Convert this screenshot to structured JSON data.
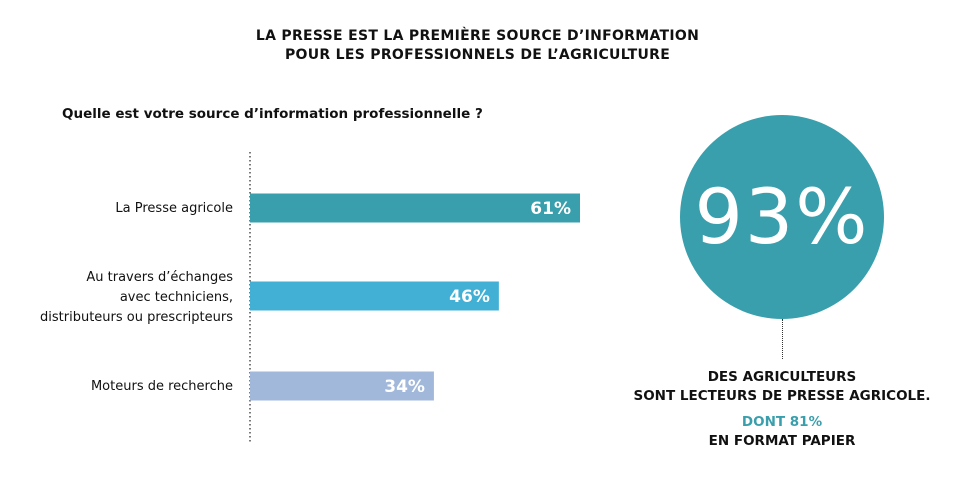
{
  "header": {
    "title_line1": "LA PRESSE EST LA PREMIÈRE SOURCE D’INFORMATION",
    "title_line2": "POUR LES PROFESSIONNELS DE L’AGRICULTURE"
  },
  "question": "Quelle est votre source d’information professionnelle ?",
  "chart_data": {
    "type": "bar",
    "orientation": "horizontal",
    "categories": [
      "La Presse agricole",
      "Au travers d’échanges\navec techniciens,\ndistributeurs ou prescripteurs",
      "Moteurs de recherche"
    ],
    "values": [
      61,
      46,
      34
    ],
    "value_labels": [
      "61%",
      "46%",
      "34%"
    ],
    "colors": [
      "#3a9fac",
      "#42b0d4",
      "#a2b8db"
    ],
    "unit": "%",
    "title": "",
    "xlabel": "",
    "ylabel": "",
    "xlim": [
      0,
      100
    ],
    "grid": false
  },
  "highlight": {
    "value": "93%",
    "color": "#3a9fac",
    "line1": "DES AGRICULTEURS",
    "line2": "SONT LECTEURS DE PRESSE AGRICOLE.",
    "line3": "DONT 81%",
    "line4": "EN FORMAT PAPIER"
  }
}
